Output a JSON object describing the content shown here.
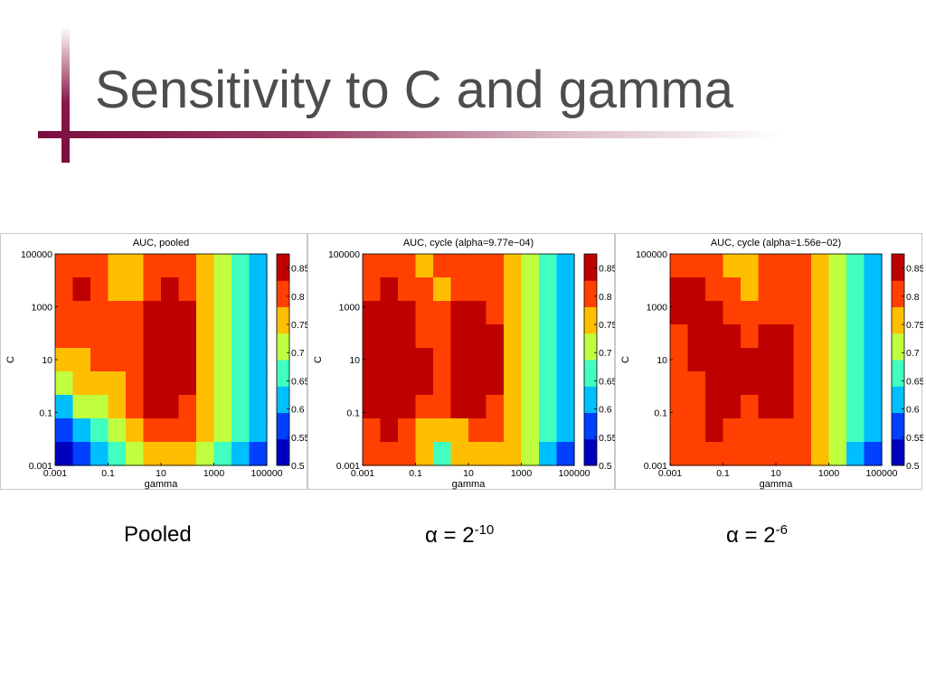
{
  "slide": {
    "title": "Sensitivity to C and gamma",
    "captions": [
      {
        "text": "Pooled"
      },
      {
        "base": "α = 2",
        "exp": "-10"
      },
      {
        "base": "α = 2",
        "exp": "-6"
      }
    ]
  },
  "chart_data": [
    {
      "type": "heatmap",
      "title": "AUC, pooled",
      "xlabel": "gamma",
      "ylabel": "C",
      "x": [
        "0.001",
        "0.1",
        "10",
        "1000",
        "100000"
      ],
      "y": [
        "0.001",
        "0.1",
        "10",
        "1000",
        "100000"
      ],
      "xlim": [
        0.001,
        100000
      ],
      "ylim": [
        0.001,
        100000
      ],
      "log_axes": true,
      "colorbar": {
        "min": 0.5,
        "max": 0.875,
        "ticks": [
          "0.5",
          "0.55",
          "0.6",
          "0.65",
          "0.7",
          "0.75",
          "0.8",
          "0.85"
        ]
      },
      "z_rows_top_to_bottom": [
        [
          0.8,
          0.8,
          0.79,
          0.76,
          0.77,
          0.8,
          0.8,
          0.79,
          0.76,
          0.7,
          0.65,
          0.6
        ],
        [
          0.8,
          0.85,
          0.81,
          0.78,
          0.76,
          0.82,
          0.83,
          0.82,
          0.76,
          0.7,
          0.65,
          0.6
        ],
        [
          0.8,
          0.82,
          0.8,
          0.79,
          0.8,
          0.84,
          0.84,
          0.83,
          0.76,
          0.7,
          0.65,
          0.6
        ],
        [
          0.79,
          0.8,
          0.8,
          0.79,
          0.8,
          0.84,
          0.85,
          0.83,
          0.76,
          0.7,
          0.65,
          0.6
        ],
        [
          0.76,
          0.78,
          0.79,
          0.79,
          0.8,
          0.84,
          0.85,
          0.83,
          0.76,
          0.7,
          0.65,
          0.6
        ],
        [
          0.7,
          0.75,
          0.77,
          0.78,
          0.8,
          0.84,
          0.85,
          0.83,
          0.76,
          0.7,
          0.65,
          0.6
        ],
        [
          0.63,
          0.69,
          0.73,
          0.76,
          0.79,
          0.84,
          0.84,
          0.82,
          0.76,
          0.7,
          0.65,
          0.6
        ],
        [
          0.57,
          0.63,
          0.68,
          0.72,
          0.76,
          0.8,
          0.8,
          0.79,
          0.75,
          0.7,
          0.65,
          0.6
        ],
        [
          0.52,
          0.57,
          0.62,
          0.66,
          0.7,
          0.74,
          0.75,
          0.74,
          0.72,
          0.68,
          0.63,
          0.55
        ]
      ]
    },
    {
      "type": "heatmap",
      "title": "AUC, cycle (alpha=9.77e−04)",
      "xlabel": "gamma",
      "ylabel": "C",
      "x": [
        "0.001",
        "0.1",
        "10",
        "1000",
        "100000"
      ],
      "y": [
        "0.001",
        "0.1",
        "10",
        "1000",
        "100000"
      ],
      "xlim": [
        0.001,
        100000
      ],
      "ylim": [
        0.001,
        100000
      ],
      "log_axes": true,
      "colorbar": {
        "min": 0.5,
        "max": 0.875,
        "ticks": [
          "0.5",
          "0.55",
          "0.6",
          "0.65",
          "0.7",
          "0.75",
          "0.8",
          "0.85"
        ]
      },
      "z_rows_top_to_bottom": [
        [
          0.8,
          0.8,
          0.8,
          0.78,
          0.79,
          0.8,
          0.8,
          0.8,
          0.76,
          0.7,
          0.65,
          0.6
        ],
        [
          0.82,
          0.83,
          0.82,
          0.79,
          0.77,
          0.81,
          0.82,
          0.81,
          0.76,
          0.7,
          0.65,
          0.6
        ],
        [
          0.85,
          0.86,
          0.84,
          0.81,
          0.79,
          0.83,
          0.84,
          0.82,
          0.76,
          0.7,
          0.65,
          0.6
        ],
        [
          0.88,
          0.89,
          0.85,
          0.82,
          0.8,
          0.84,
          0.85,
          0.83,
          0.76,
          0.7,
          0.65,
          0.6
        ],
        [
          0.88,
          0.89,
          0.85,
          0.83,
          0.81,
          0.84,
          0.85,
          0.83,
          0.76,
          0.7,
          0.65,
          0.6
        ],
        [
          0.87,
          0.88,
          0.85,
          0.83,
          0.81,
          0.84,
          0.85,
          0.83,
          0.76,
          0.7,
          0.65,
          0.6
        ],
        [
          0.85,
          0.86,
          0.85,
          0.82,
          0.8,
          0.83,
          0.84,
          0.82,
          0.76,
          0.7,
          0.65,
          0.6
        ],
        [
          0.82,
          0.83,
          0.82,
          0.78,
          0.74,
          0.78,
          0.81,
          0.8,
          0.75,
          0.7,
          0.65,
          0.6
        ],
        [
          0.8,
          0.8,
          0.79,
          0.74,
          0.68,
          0.74,
          0.78,
          0.78,
          0.74,
          0.69,
          0.64,
          0.55
        ]
      ]
    },
    {
      "type": "heatmap",
      "title": "AUC, cycle (alpha=1.56e−02)",
      "xlabel": "gamma",
      "ylabel": "C",
      "x": [
        "0.001",
        "0.1",
        "10",
        "1000",
        "100000"
      ],
      "y": [
        "0.001",
        "0.1",
        "10",
        "1000",
        "100000"
      ],
      "xlim": [
        0.001,
        100000
      ],
      "ylim": [
        0.001,
        100000
      ],
      "log_axes": true,
      "colorbar": {
        "min": 0.5,
        "max": 0.875,
        "ticks": [
          "0.5",
          "0.55",
          "0.6",
          "0.65",
          "0.7",
          "0.75",
          "0.8",
          "0.85"
        ]
      },
      "z_rows_top_to_bottom": [
        [
          0.82,
          0.81,
          0.8,
          0.78,
          0.77,
          0.79,
          0.8,
          0.8,
          0.76,
          0.7,
          0.65,
          0.6
        ],
        [
          0.84,
          0.83,
          0.82,
          0.8,
          0.78,
          0.8,
          0.81,
          0.81,
          0.76,
          0.7,
          0.65,
          0.6
        ],
        [
          0.83,
          0.85,
          0.84,
          0.82,
          0.8,
          0.8,
          0.81,
          0.81,
          0.76,
          0.7,
          0.65,
          0.6
        ],
        [
          0.81,
          0.84,
          0.85,
          0.84,
          0.82,
          0.84,
          0.83,
          0.82,
          0.76,
          0.7,
          0.65,
          0.6
        ],
        [
          0.8,
          0.83,
          0.85,
          0.85,
          0.83,
          0.86,
          0.85,
          0.82,
          0.76,
          0.7,
          0.65,
          0.6
        ],
        [
          0.8,
          0.82,
          0.85,
          0.85,
          0.83,
          0.86,
          0.86,
          0.82,
          0.76,
          0.7,
          0.65,
          0.6
        ],
        [
          0.8,
          0.81,
          0.87,
          0.84,
          0.82,
          0.84,
          0.84,
          0.81,
          0.76,
          0.7,
          0.65,
          0.6
        ],
        [
          0.8,
          0.8,
          0.85,
          0.82,
          0.8,
          0.82,
          0.82,
          0.8,
          0.75,
          0.7,
          0.65,
          0.6
        ],
        [
          0.79,
          0.79,
          0.81,
          0.8,
          0.79,
          0.8,
          0.8,
          0.79,
          0.74,
          0.69,
          0.64,
          0.55
        ]
      ]
    }
  ]
}
